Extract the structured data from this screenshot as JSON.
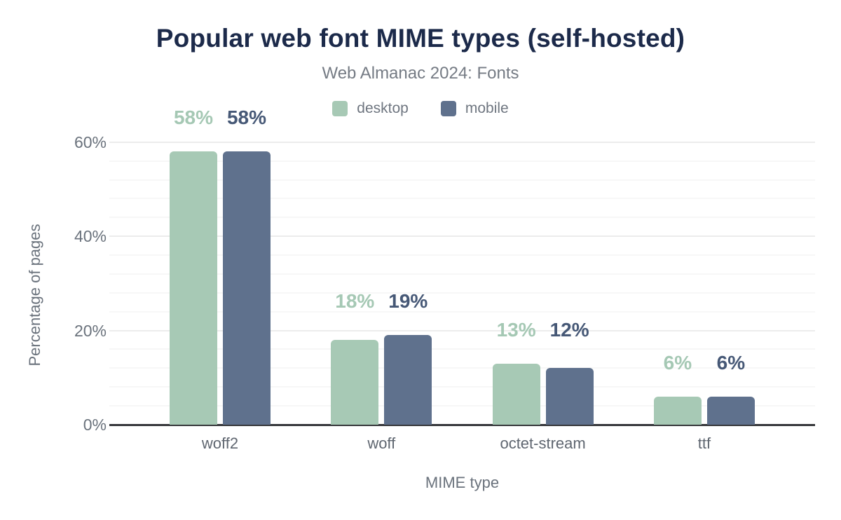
{
  "header": {
    "title": "Popular web font MIME types (self-hosted)",
    "subtitle": "Web Almanac 2024: Fonts"
  },
  "chart_data": {
    "type": "bar",
    "title": "Popular web font MIME types (self-hosted)",
    "subtitle": "Web Almanac 2024: Fonts",
    "categories": [
      "woff2",
      "woff",
      "octet-stream",
      "ttf"
    ],
    "series": [
      {
        "name": "desktop",
        "values": [
          58,
          18,
          13,
          6
        ],
        "color": "#a7c9b5",
        "label_color": "#a5c8b4"
      },
      {
        "name": "mobile",
        "values": [
          58,
          19,
          12,
          6
        ],
        "color": "#5f718d",
        "label_color": "#465876"
      }
    ],
    "value_label_suffix": "%",
    "xlabel": "MIME type",
    "ylabel": "Percentage of pages",
    "ylim": [
      0,
      60
    ],
    "yticks": [
      {
        "value": 0,
        "label": "0%"
      },
      {
        "value": 20,
        "label": "20%"
      },
      {
        "value": 40,
        "label": "40%"
      },
      {
        "value": 60,
        "label": "60%"
      }
    ],
    "minor_grid_step": 4,
    "major_grid_step": 20,
    "grid": true,
    "legend_position": "top-center"
  },
  "colors": {
    "title": "#1c2a4a",
    "subtitle": "#757b84",
    "muted_text": "#6a727c",
    "axis_line": "#35363a",
    "grid_major": "#ececec",
    "grid_minor": "#f7f7f7",
    "background": "#ffffff"
  }
}
